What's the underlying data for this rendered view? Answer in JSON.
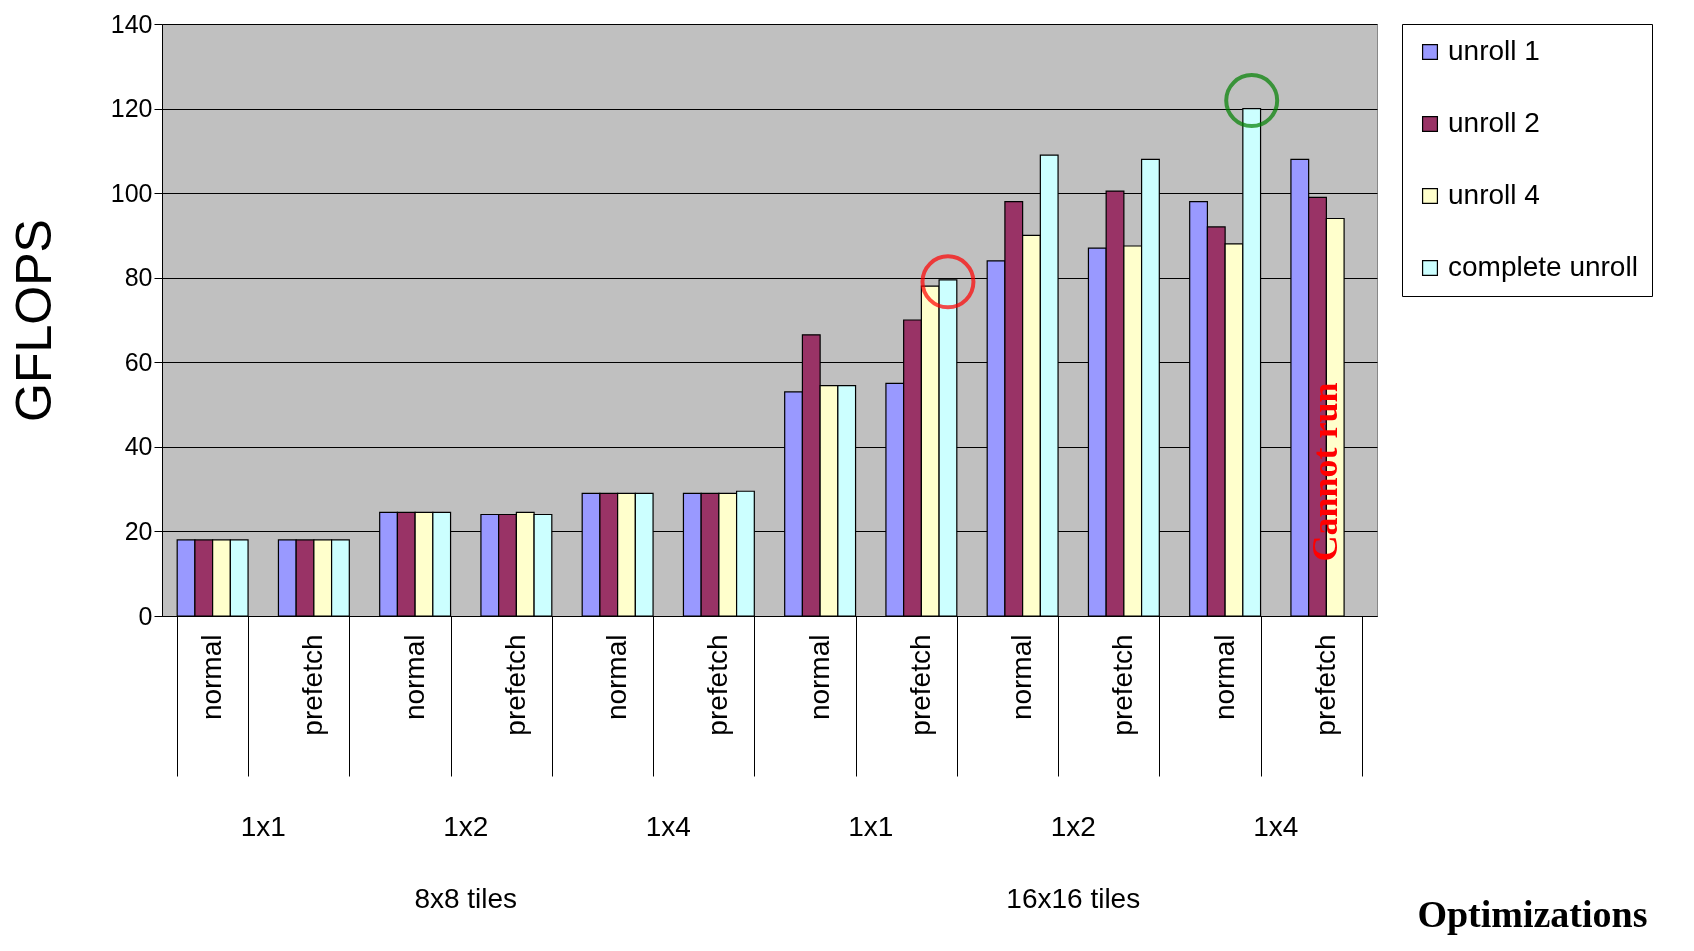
{
  "chart_data": {
    "type": "bar",
    "categories": [
      "normal",
      "prefetch",
      "normal",
      "prefetch",
      "normal",
      "prefetch",
      "normal",
      "prefetch",
      "normal",
      "prefetch",
      "normal",
      "prefetch"
    ],
    "series": [
      {
        "name": "unroll 1",
        "color": "#9999ff",
        "values": [
          18,
          18,
          24.5,
          24,
          29,
          29,
          53,
          55,
          84,
          87,
          98,
          108
        ]
      },
      {
        "name": "unroll 2",
        "color": "#993366",
        "values": [
          18,
          18,
          24.5,
          24,
          29,
          29,
          66.5,
          70,
          98,
          100.5,
          92,
          99
        ]
      },
      {
        "name": "unroll 4",
        "color": "#ffffcc",
        "values": [
          18,
          18,
          24.5,
          24.5,
          29,
          29,
          54.5,
          78,
          90,
          87.5,
          88,
          94
        ]
      },
      {
        "name": "complete unroll",
        "color": "#ccffff",
        "values": [
          18,
          18,
          24.5,
          24,
          29,
          29.5,
          54.5,
          79.5,
          109,
          108,
          120,
          null
        ]
      }
    ],
    "ylabel": "GFLOPS",
    "xlabel": "Optimizations",
    "ylim": [
      0,
      140
    ],
    "yticks": [
      0,
      20,
      40,
      60,
      80,
      100,
      120,
      140
    ],
    "grid": "y",
    "legend": "right",
    "annotations": [
      "1x1",
      "1x2",
      "1x4",
      "1x1",
      "1x2",
      "1x4",
      "8x8 tiles",
      "16x16 tiles",
      "Cannot run"
    ]
  }
}
